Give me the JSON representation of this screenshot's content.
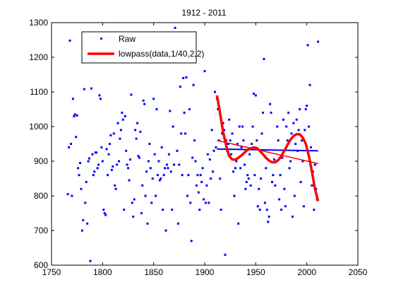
{
  "chart_data": {
    "type": "scatter",
    "title": "1912 - 2011",
    "xlabel": "",
    "ylabel": "",
    "xlim": [
      1750,
      2050
    ],
    "ylim": [
      600,
      1300
    ],
    "xticks": [
      "1750",
      "1800",
      "1850",
      "1900",
      "1950",
      "2000",
      "2050"
    ],
    "yticks": [
      "600",
      "700",
      "800",
      "900",
      "1000",
      "1100",
      "1200",
      "1300"
    ],
    "grid": false,
    "legend_position": "top-left",
    "legend": [
      "Raw",
      "lowpass(data,1/40,2,2)"
    ],
    "colors": {
      "raw": "#0000ff",
      "lowpass": "#ff0000",
      "trend_blue": "#0000ff",
      "trend_red": "#ff0000"
    },
    "raw": [
      [
        1766,
        805
      ],
      [
        1767,
        940
      ],
      [
        1768,
        1248
      ],
      [
        1769,
        950
      ],
      [
        1770,
        800
      ],
      [
        1771,
        1080
      ],
      [
        1772,
        1030
      ],
      [
        1773,
        1035
      ],
      [
        1774,
        970
      ],
      [
        1775,
        1032
      ],
      [
        1776,
        880
      ],
      [
        1777,
        860
      ],
      [
        1778,
        895
      ],
      [
        1779,
        820
      ],
      [
        1780,
        700
      ],
      [
        1781,
        730
      ],
      [
        1782,
        1108
      ],
      [
        1783,
        780
      ],
      [
        1784,
        840
      ],
      [
        1785,
        720
      ],
      [
        1786,
        900
      ],
      [
        1787,
        908
      ],
      [
        1788,
        612
      ],
      [
        1789,
        1110
      ],
      [
        1790,
        920
      ],
      [
        1791,
        860
      ],
      [
        1792,
        870
      ],
      [
        1793,
        925
      ],
      [
        1794,
        925
      ],
      [
        1795,
        880
      ],
      [
        1796,
        890
      ],
      [
        1797,
        1090
      ],
      [
        1798,
        1080
      ],
      [
        1799,
        940
      ],
      [
        1800,
        900
      ],
      [
        1801,
        760
      ],
      [
        1802,
        750
      ],
      [
        1803,
        745
      ],
      [
        1804,
        935
      ],
      [
        1805,
        860
      ],
      [
        1806,
        920
      ],
      [
        1807,
        950
      ],
      [
        1808,
        975
      ],
      [
        1809,
        875
      ],
      [
        1810,
        885
      ],
      [
        1811,
        980
      ],
      [
        1812,
        830
      ],
      [
        1813,
        820
      ],
      [
        1814,
        890
      ],
      [
        1815,
        1010
      ],
      [
        1816,
        900
      ],
      [
        1817,
        965
      ],
      [
        1818,
        990
      ],
      [
        1819,
        1040
      ],
      [
        1820,
        1020
      ],
      [
        1821,
        760
      ],
      [
        1822,
        1030
      ],
      [
        1823,
        930
      ],
      [
        1824,
        890
      ],
      [
        1825,
        880
      ],
      [
        1826,
        845
      ],
      [
        1827,
        905
      ],
      [
        1828,
        1092
      ],
      [
        1829,
        780
      ],
      [
        1830,
        740
      ],
      [
        1831,
        790
      ],
      [
        1832,
        990
      ],
      [
        1833,
        965
      ],
      [
        1834,
        1010
      ],
      [
        1835,
        915
      ],
      [
        1836,
        910
      ],
      [
        1837,
        985
      ],
      [
        1838,
        750
      ],
      [
        1839,
        830
      ],
      [
        1840,
        1075
      ],
      [
        1841,
        1065
      ],
      [
        1842,
        800
      ],
      [
        1843,
        870
      ],
      [
        1844,
        720
      ],
      [
        1845,
        900
      ],
      [
        1846,
        950
      ],
      [
        1847,
        880
      ],
      [
        1848,
        780
      ],
      [
        1849,
        850
      ],
      [
        1850,
        1080
      ],
      [
        1851,
        920
      ],
      [
        1852,
        800
      ],
      [
        1853,
        1050
      ],
      [
        1854,
        860
      ],
      [
        1855,
        900
      ],
      [
        1856,
        845
      ],
      [
        1857,
        850
      ],
      [
        1858,
        940
      ],
      [
        1859,
        760
      ],
      [
        1860,
        860
      ],
      [
        1861,
        880
      ],
      [
        1862,
        700
      ],
      [
        1863,
        890
      ],
      [
        1864,
        880
      ],
      [
        1865,
        920
      ],
      [
        1866,
        1045
      ],
      [
        1867,
        870
      ],
      [
        1868,
        760
      ],
      [
        1869,
        1000
      ],
      [
        1870,
        890
      ],
      [
        1871,
        1285
      ],
      [
        1872,
        1230
      ],
      [
        1873,
        930
      ],
      [
        1874,
        720
      ],
      [
        1875,
        890
      ],
      [
        1876,
        1115
      ],
      [
        1877,
        980
      ],
      [
        1878,
        860
      ],
      [
        1879,
        1140
      ],
      [
        1880,
        1040
      ],
      [
        1881,
        980
      ],
      [
        1882,
        1142
      ],
      [
        1883,
        800
      ],
      [
        1884,
        860
      ],
      [
        1885,
        1050
      ],
      [
        1886,
        780
      ],
      [
        1887,
        670
      ],
      [
        1888,
        910
      ],
      [
        1889,
        1120
      ],
      [
        1890,
        960
      ],
      [
        1891,
        900
      ],
      [
        1892,
        830
      ],
      [
        1893,
        860
      ],
      [
        1894,
        810
      ],
      [
        1895,
        760
      ],
      [
        1896,
        860
      ],
      [
        1897,
        840
      ],
      [
        1898,
        880
      ],
      [
        1899,
        790
      ],
      [
        1900,
        1160
      ],
      [
        1901,
        780
      ],
      [
        1902,
        830
      ],
      [
        1903,
        920
      ],
      [
        1904,
        780
      ],
      [
        1905,
        905
      ],
      [
        1906,
        850
      ],
      [
        1907,
        990
      ],
      [
        1908,
        870
      ],
      [
        1909,
        930
      ],
      [
        1910,
        1100
      ],
      [
        1911,
        940
      ],
      [
        1912,
        1080
      ],
      [
        1913,
        1050
      ],
      [
        1914,
        960
      ],
      [
        1915,
        850
      ],
      [
        1916,
        760
      ],
      [
        1917,
        980
      ],
      [
        1918,
        1010
      ],
      [
        1919,
        990
      ],
      [
        1920,
        630
      ],
      [
        1921,
        960
      ],
      [
        1922,
        930
      ],
      [
        1923,
        950
      ],
      [
        1924,
        1020
      ],
      [
        1925,
        960
      ],
      [
        1926,
        920
      ],
      [
        1927,
        980
      ],
      [
        1928,
        870
      ],
      [
        1929,
        800
      ],
      [
        1930,
        880
      ],
      [
        1931,
        900
      ],
      [
        1932,
        950
      ],
      [
        1933,
        720
      ],
      [
        1934,
        1000
      ],
      [
        1935,
        880
      ],
      [
        1936,
        940
      ],
      [
        1937,
        1000
      ],
      [
        1938,
        960
      ],
      [
        1939,
        890
      ],
      [
        1940,
        820
      ],
      [
        1941,
        840
      ],
      [
        1942,
        860
      ],
      [
        1943,
        850
      ],
      [
        1944,
        920
      ],
      [
        1945,
        830
      ],
      [
        1946,
        950
      ],
      [
        1947,
        1000
      ],
      [
        1948,
        1095
      ],
      [
        1949,
        860
      ],
      [
        1950,
        1090
      ],
      [
        1951,
        960
      ],
      [
        1952,
        770
      ],
      [
        1953,
        820
      ],
      [
        1954,
        760
      ],
      [
        1955,
        850
      ],
      [
        1956,
        980
      ],
      [
        1957,
        1040
      ],
      [
        1958,
        1195
      ],
      [
        1959,
        780
      ],
      [
        1960,
        880
      ],
      [
        1961,
        760
      ],
      [
        1962,
        725
      ],
      [
        1963,
        740
      ],
      [
        1964,
        1065
      ],
      [
        1965,
        1040
      ],
      [
        1966,
        840
      ],
      [
        1967,
        860
      ],
      [
        1968,
        905
      ],
      [
        1969,
        830
      ],
      [
        1970,
        900
      ],
      [
        1971,
        1000
      ],
      [
        1972,
        960
      ],
      [
        1973,
        790
      ],
      [
        1974,
        860
      ],
      [
        1975,
        760
      ],
      [
        1976,
        910
      ],
      [
        1977,
        1020
      ],
      [
        1978,
        820
      ],
      [
        1979,
        770
      ],
      [
        1980,
        1000
      ],
      [
        1981,
        960
      ],
      [
        1982,
        1040
      ],
      [
        1983,
        880
      ],
      [
        1984,
        900
      ],
      [
        1985,
        980
      ],
      [
        1986,
        740
      ],
      [
        1987,
        1010
      ],
      [
        1988,
        800
      ],
      [
        1989,
        950
      ],
      [
        1990,
        1020
      ],
      [
        1991,
        930
      ],
      [
        1992,
        990
      ],
      [
        1993,
        1050
      ],
      [
        1994,
        840
      ],
      [
        1995,
        960
      ],
      [
        1996,
        900
      ],
      [
        1997,
        770
      ],
      [
        1998,
        990
      ],
      [
        1999,
        1050
      ],
      [
        2000,
        1060
      ],
      [
        2001,
        1235
      ],
      [
        2002,
        1000
      ],
      [
        2003,
        1120
      ],
      [
        2004,
        940
      ],
      [
        2005,
        830
      ],
      [
        2006,
        870
      ],
      [
        2007,
        760
      ],
      [
        2008,
        890
      ],
      [
        2009,
        820
      ],
      [
        2010,
        790
      ],
      [
        2011,
        1245
      ]
    ],
    "lowpass": [
      [
        1912,
        1090
      ],
      [
        1915,
        1040
      ],
      [
        1918,
        985
      ],
      [
        1921,
        945
      ],
      [
        1924,
        915
      ],
      [
        1927,
        905
      ],
      [
        1930,
        905
      ],
      [
        1933,
        910
      ],
      [
        1936,
        917
      ],
      [
        1939,
        925
      ],
      [
        1942,
        933
      ],
      [
        1945,
        937
      ],
      [
        1948,
        940
      ],
      [
        1951,
        938
      ],
      [
        1954,
        930
      ],
      [
        1957,
        920
      ],
      [
        1960,
        910
      ],
      [
        1963,
        902
      ],
      [
        1966,
        897
      ],
      [
        1969,
        897
      ],
      [
        1972,
        903
      ],
      [
        1975,
        915
      ],
      [
        1978,
        930
      ],
      [
        1981,
        947
      ],
      [
        1984,
        962
      ],
      [
        1987,
        973
      ],
      [
        1990,
        978
      ],
      [
        1993,
        978
      ],
      [
        1996,
        968
      ],
      [
        1999,
        950
      ],
      [
        2002,
        915
      ],
      [
        2005,
        870
      ],
      [
        2008,
        820
      ],
      [
        2011,
        785
      ]
    ],
    "trend_blue": [
      [
        1912,
        935
      ],
      [
        2011,
        930
      ]
    ],
    "trend_red": [
      [
        1912,
        960
      ],
      [
        2011,
        893
      ]
    ]
  }
}
